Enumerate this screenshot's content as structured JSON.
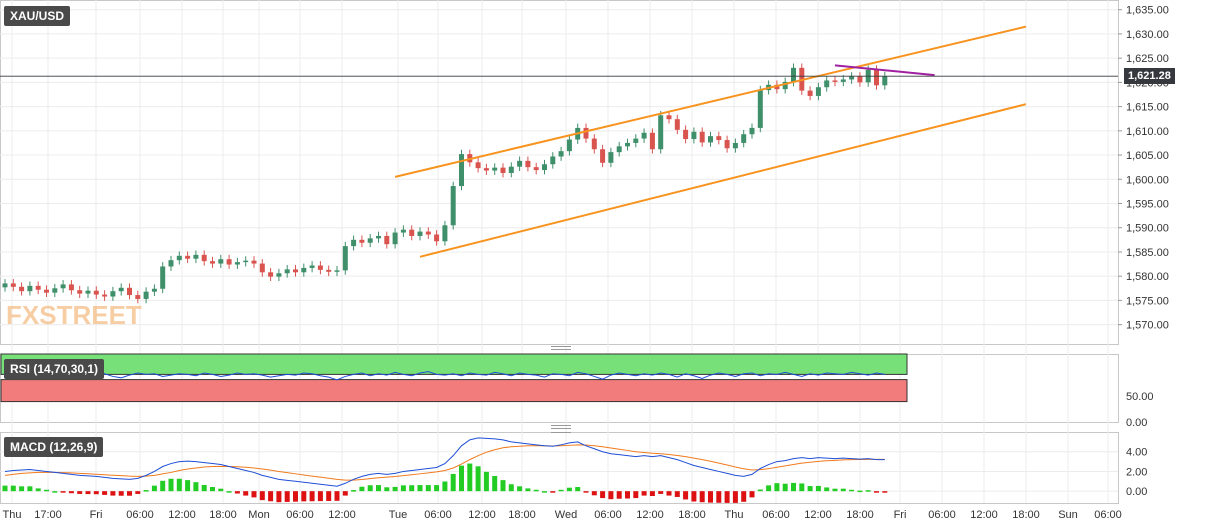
{
  "symbol": "XAU/USD",
  "watermark": "FXSTREET",
  "last_price_label": "1,621.28",
  "colors": {
    "up": "#3f8f6b",
    "down": "#d9534f",
    "channel": "#f7931e",
    "resistance": "#a020a0",
    "rsi_line": "#1f4fd6",
    "macd_line": "#1f4fd6",
    "signal_line": "#f07b1e",
    "rsi_over": "#78e078",
    "rsi_under": "#f27c7c"
  },
  "chart_data": [
    {
      "type": "candlestick",
      "title": "XAU/USD",
      "x_ticks": [
        "Thu",
        "17:00",
        "Fri",
        "06:00",
        "12:00",
        "18:00",
        "Mon",
        "06:00",
        "12:00",
        "Tue",
        "06:00",
        "12:00",
        "18:00",
        "Wed",
        "06:00",
        "12:00",
        "18:00",
        "Thu",
        "06:00",
        "12:00",
        "18:00",
        "Fri",
        "06:00",
        "12:00",
        "18:00",
        "Sun",
        "06:00"
      ],
      "y_ticks": [
        "1,570.00",
        "1,575.00",
        "1,580.00",
        "1,585.00",
        "1,590.00",
        "1,595.00",
        "1,600.00",
        "1,605.00",
        "1,610.00",
        "1,615.00",
        "1,620.00",
        "1,625.00",
        "1,630.00",
        "1,635.00"
      ],
      "ylim": [
        1566,
        1637
      ],
      "close": [
        1578.5,
        1577.8,
        1576.9,
        1578.0,
        1577.2,
        1576.6,
        1577.5,
        1578.3,
        1577.1,
        1576.4,
        1577.0,
        1576.2,
        1575.8,
        1576.9,
        1577.6,
        1576.1,
        1575.3,
        1576.8,
        1577.4,
        1582.0,
        1583.3,
        1584.2,
        1583.6,
        1584.4,
        1583.1,
        1582.6,
        1583.5,
        1582.4,
        1582.9,
        1583.2,
        1582.6,
        1580.8,
        1579.9,
        1580.6,
        1581.4,
        1580.8,
        1581.7,
        1582.2,
        1581.3,
        1580.9,
        1581.2,
        1586.2,
        1587.5,
        1586.9,
        1587.8,
        1588.3,
        1586.6,
        1589.0,
        1589.6,
        1588.3,
        1589.2,
        1588.6,
        1587.2,
        1590.5,
        1598.6,
        1605.2,
        1603.5,
        1602.3,
        1601.8,
        1602.4,
        1601.3,
        1602.6,
        1603.8,
        1602.5,
        1601.9,
        1603.1,
        1604.7,
        1605.8,
        1608.2,
        1610.6,
        1608.4,
        1606.2,
        1603.4,
        1605.6,
        1606.8,
        1607.5,
        1608.4,
        1609.6,
        1606.2,
        1613.2,
        1612.4,
        1610.2,
        1608.3,
        1609.8,
        1607.6,
        1608.9,
        1608.1,
        1606.4,
        1607.5,
        1609.3,
        1610.6,
        1618.4,
        1619.5,
        1618.6,
        1620.1,
        1623.0,
        1618.3,
        1617.2,
        1619.0,
        1620.4,
        1620.1,
        1620.6,
        1621.2,
        1620.0,
        1622.6,
        1619.4,
        1621.28
      ],
      "ohlc_note": "",
      "channel_upper": {
        "from": [
          47.0,
          1600.5
        ],
        "to": [
          123.0,
          1631.5
        ]
      },
      "channel_lower": {
        "from": [
          50.0,
          1584.0
        ],
        "to": [
          123.0,
          1615.5
        ]
      },
      "resistance": {
        "from": [
          100.0,
          1623.5
        ],
        "to": [
          112.0,
          1621.5
        ]
      }
    },
    {
      "type": "line",
      "title": "RSI (14,70,30,1)",
      "y_ticks": [
        "0.00",
        "50.00"
      ],
      "ylim": [
        0,
        100
      ],
      "levels": [
        30,
        70
      ],
      "series": [
        {
          "name": "RSI",
          "values": [
            68,
            69,
            67,
            70,
            72,
            70,
            68,
            71,
            69,
            66,
            70,
            72,
            71,
            67,
            65,
            69,
            72,
            70,
            71,
            67,
            69,
            71,
            70,
            68,
            72,
            70,
            67,
            69,
            72,
            70,
            71,
            69,
            66,
            68,
            70,
            69,
            72,
            71,
            68,
            66,
            62,
            67,
            70,
            72,
            68,
            71,
            69,
            73,
            70,
            68,
            72,
            74,
            70,
            69,
            71,
            68,
            72,
            70,
            69,
            73,
            71,
            68,
            72,
            70,
            69,
            66,
            71,
            70,
            68,
            73,
            71,
            67,
            63,
            69,
            72,
            70,
            68,
            71,
            69,
            72,
            70,
            66,
            71,
            68,
            64,
            69,
            72,
            70,
            67,
            71,
            72,
            68,
            71,
            70,
            73,
            70,
            67,
            71,
            69,
            72,
            71,
            70,
            73,
            71,
            69,
            72,
            70
          ]
        }
      ]
    },
    {
      "type": "bar+line",
      "title": "MACD (12,26,9)",
      "y_ticks": [
        "0.00",
        "2.00",
        "4.00"
      ],
      "ylim": [
        -1.2,
        6
      ],
      "series": [
        {
          "name": "MACD",
          "values": [
            2.0,
            2.1,
            2.15,
            2.2,
            2.1,
            2.0,
            1.9,
            1.8,
            1.7,
            1.6,
            1.55,
            1.5,
            1.4,
            1.3,
            1.25,
            1.2,
            1.3,
            1.6,
            2.0,
            2.5,
            2.8,
            3.0,
            3.05,
            3.0,
            2.9,
            2.8,
            2.7,
            2.5,
            2.3,
            2.1,
            1.9,
            1.6,
            1.4,
            1.2,
            1.1,
            1.0,
            0.9,
            0.8,
            0.7,
            0.6,
            0.5,
            0.8,
            1.2,
            1.5,
            1.7,
            1.8,
            1.7,
            1.8,
            2.0,
            2.1,
            2.2,
            2.3,
            2.4,
            2.8,
            3.6,
            4.6,
            5.2,
            5.4,
            5.35,
            5.3,
            5.2,
            5.0,
            4.9,
            4.8,
            4.7,
            4.6,
            4.55,
            4.7,
            4.9,
            5.0,
            4.6,
            4.3,
            4.0,
            3.8,
            3.7,
            3.6,
            3.5,
            3.6,
            3.5,
            3.6,
            3.4,
            3.2,
            2.9,
            2.6,
            2.4,
            2.2,
            2.0,
            1.8,
            1.6,
            1.5,
            1.7,
            2.3,
            2.7,
            3.0,
            3.1,
            3.3,
            3.4,
            3.3,
            3.4,
            3.35,
            3.3,
            3.35,
            3.3,
            3.25,
            3.3,
            3.2,
            3.2
          ]
        },
        {
          "name": "Signal",
          "values": [
            1.6,
            1.7,
            1.8,
            1.85,
            1.9,
            1.9,
            1.9,
            1.88,
            1.85,
            1.8,
            1.76,
            1.72,
            1.67,
            1.62,
            1.58,
            1.53,
            1.5,
            1.52,
            1.6,
            1.75,
            1.9,
            2.1,
            2.25,
            2.35,
            2.45,
            2.5,
            2.52,
            2.5,
            2.47,
            2.42,
            2.35,
            2.25,
            2.13,
            2.0,
            1.88,
            1.76,
            1.64,
            1.53,
            1.42,
            1.31,
            1.2,
            1.12,
            1.12,
            1.18,
            1.27,
            1.36,
            1.42,
            1.49,
            1.58,
            1.67,
            1.76,
            1.86,
            1.96,
            2.1,
            2.35,
            2.75,
            3.2,
            3.6,
            3.95,
            4.2,
            4.4,
            4.5,
            4.55,
            4.6,
            4.6,
            4.6,
            4.58,
            4.6,
            4.65,
            4.7,
            4.68,
            4.6,
            4.5,
            4.38,
            4.25,
            4.13,
            4.0,
            3.92,
            3.85,
            3.8,
            3.72,
            3.62,
            3.5,
            3.35,
            3.2,
            3.03,
            2.84,
            2.65,
            2.45,
            2.27,
            2.15,
            2.18,
            2.28,
            2.42,
            2.56,
            2.7,
            2.84,
            2.93,
            3.02,
            3.08,
            3.12,
            3.17,
            3.2,
            3.21,
            3.23,
            3.22,
            3.22
          ]
        }
      ]
    }
  ]
}
